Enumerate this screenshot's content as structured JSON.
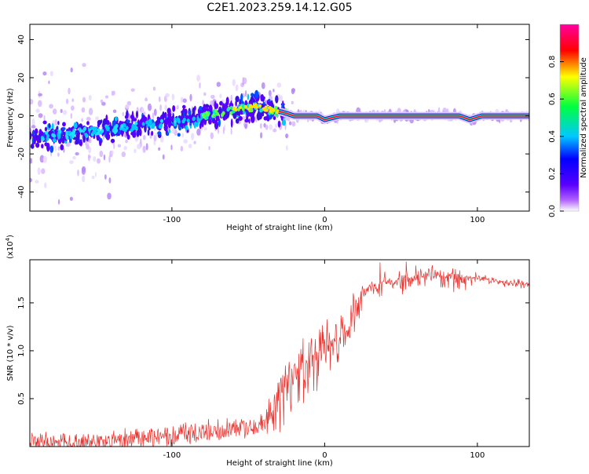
{
  "page_title": "C2E1.2023.259.14.12.G05",
  "colors": {
    "snr_line": "#e8302c",
    "spectrum_ridge": "#00e8f0",
    "spectrum_core": "#ff2020"
  },
  "chart_data": [
    {
      "type": "heatmap",
      "title": "C2E1.2023.259.14.12.G05",
      "xlabel": "Height of straight line (km)",
      "ylabel": "Frequency (Hz)",
      "xlim": [
        -193,
        134
      ],
      "ylim": [
        -50,
        48
      ],
      "xticks": [
        -100,
        0,
        100
      ],
      "yticks": [
        -40,
        -20,
        0,
        20,
        40
      ],
      "colorbar": {
        "label": "Normalized spectral amplitude",
        "range": [
          0,
          1
        ],
        "ticks": [
          "0.0",
          "0.2",
          "0.4",
          "0.6",
          "0.8"
        ],
        "colors": [
          "#ffffff",
          "#b060ff",
          "#5a00ff",
          "#0000ff",
          "#00c8ff",
          "#00ff40",
          "#ffff00",
          "#ff0000",
          "#ff00a0"
        ]
      },
      "ridge": {
        "x": [
          -193,
          -170,
          -150,
          -130,
          -110,
          -90,
          -70,
          -55,
          -45,
          -35,
          -28,
          -20,
          -5,
          0,
          10,
          30,
          60,
          88,
          95,
          103,
          134
        ],
        "y": [
          -11,
          -10,
          -8,
          -6,
          -4,
          -2,
          1,
          4,
          5,
          3,
          2,
          0,
          0,
          -2,
          0,
          0,
          0,
          0,
          -2,
          0,
          0
        ]
      }
    },
    {
      "type": "line",
      "xlabel": "Height of straight line (km)",
      "ylabel": "SNR (10 * v/v)",
      "y_multiplier": "(x10",
      "y_multiplier_exp": "4",
      "xlim": [
        -193,
        134
      ],
      "ylim": [
        0,
        1.95
      ],
      "xticks": [
        -100,
        0,
        100
      ],
      "yticks": [
        "0.5",
        "1.0",
        "1.5"
      ],
      "envelope": {
        "x": [
          -193,
          -150,
          -120,
          -100,
          -80,
          -60,
          -45,
          -35,
          -30,
          -25,
          -20,
          -10,
          -5,
          0,
          5,
          10,
          15,
          20,
          25,
          30,
          40,
          50,
          60,
          70,
          80,
          90,
          100,
          110,
          120,
          134
        ],
        "y": [
          0.05,
          0.06,
          0.1,
          0.14,
          0.18,
          0.2,
          0.22,
          0.3,
          0.55,
          0.8,
          0.8,
          0.9,
          1.0,
          1.1,
          1.12,
          1.15,
          1.3,
          1.45,
          1.6,
          1.68,
          1.73,
          1.75,
          1.77,
          1.78,
          1.78,
          1.77,
          1.76,
          1.74,
          1.72,
          1.7
        ]
      }
    }
  ]
}
